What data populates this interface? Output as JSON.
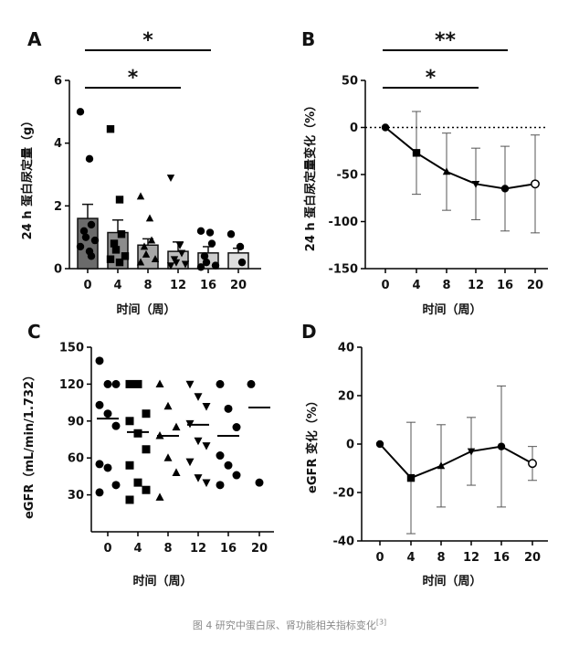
{
  "panels": [
    {
      "id": "A",
      "letter": "A",
      "chart_data": {
        "type": "bar",
        "title": "",
        "xlabel": "时间（周）",
        "ylabel": "24 h 蛋白尿定量（g）",
        "categories": [
          "0",
          "4",
          "8",
          "12",
          "16",
          "20"
        ],
        "values": [
          1.6,
          1.15,
          0.75,
          0.55,
          0.5,
          0.5
        ],
        "errors": [
          0.45,
          0.4,
          0.2,
          0.3,
          0.2,
          0.15
        ],
        "bar_colors": [
          "#6b6b6b",
          "#8c8c8c",
          "#a6a6a6",
          "#bcbcbc",
          "#cdcdcd",
          "#dedede"
        ],
        "markers": [
          "circle",
          "square",
          "triangle",
          "triangle-down",
          "circle",
          "circle"
        ],
        "points": [
          [
            5.0,
            3.5,
            1.4,
            1.2,
            1.0,
            0.9,
            0.7,
            0.55,
            0.4
          ],
          [
            4.45,
            2.2,
            1.1,
            0.8,
            0.6,
            0.4,
            0.3,
            0.2
          ],
          [
            2.3,
            1.6,
            0.9,
            0.7,
            0.45,
            0.3,
            0.2
          ],
          [
            2.9,
            0.75,
            0.5,
            0.3,
            0.2,
            0.15,
            0.1
          ],
          [
            1.2,
            1.15,
            0.8,
            0.4,
            0.2,
            0.1,
            0.05
          ],
          [
            1.1,
            0.7,
            0.2
          ]
        ],
        "yticks": [
          "0",
          "2",
          "4",
          "6"
        ],
        "ylim": [
          0,
          6
        ],
        "significance": [
          {
            "from": "0",
            "to": "16",
            "label": "*"
          },
          {
            "from": "0",
            "to": "12",
            "label": "*"
          }
        ]
      }
    },
    {
      "id": "B",
      "letter": "B",
      "chart_data": {
        "type": "line",
        "title": "",
        "xlabel": "时间（周）",
        "ylabel": "24 h 蛋白尿定量变化（%）",
        "categories": [
          "0",
          "4",
          "8",
          "12",
          "16",
          "20"
        ],
        "values": [
          0,
          -27,
          -47,
          -60,
          -65,
          -60
        ],
        "errors": [
          0,
          44,
          41,
          38,
          45,
          52
        ],
        "markers": [
          "circle",
          "square",
          "triangle",
          "triangle-down",
          "circle",
          "circle-open"
        ],
        "yticks": [
          "50",
          "0",
          "-50",
          "-100",
          "-150"
        ],
        "ylim": [
          -150,
          50
        ],
        "reference_line": 0,
        "significance": [
          {
            "from": "0",
            "to": "16",
            "label": "**"
          },
          {
            "from": "0",
            "to": "12",
            "label": "*"
          }
        ]
      }
    },
    {
      "id": "C",
      "letter": "C",
      "chart_data": {
        "type": "scatter",
        "title": "",
        "xlabel": "时间（周）",
        "ylabel": "eGFR（mL/min/1.732）",
        "categories": [
          "0",
          "4",
          "8",
          "12",
          "16",
          "20"
        ],
        "medians": [
          92,
          81,
          78,
          87,
          78,
          101
        ],
        "markers": [
          "circle",
          "square",
          "triangle",
          "triangle-down",
          "circle",
          "circle"
        ],
        "points": [
          [
            139,
            120,
            120,
            103,
            96,
            86,
            55,
            52,
            38,
            32
          ],
          [
            120,
            120,
            96,
            90,
            80,
            67,
            54,
            40,
            34,
            26
          ],
          [
            120,
            102,
            85,
            78,
            60,
            48,
            28
          ],
          [
            120,
            110,
            102,
            88,
            74,
            70,
            57,
            44,
            40
          ],
          [
            120,
            100,
            85,
            62,
            54,
            46,
            38
          ],
          [
            120,
            40
          ]
        ],
        "yticks": [
          "150",
          "120",
          "90",
          "60",
          "30"
        ],
        "ylim": [
          0,
          150
        ]
      }
    },
    {
      "id": "D",
      "letter": "D",
      "chart_data": {
        "type": "line",
        "title": "",
        "xlabel": "时间（周）",
        "ylabel": "eGFR 变化（%）",
        "categories": [
          "0",
          "4",
          "8",
          "12",
          "16",
          "20"
        ],
        "values": [
          0,
          -14,
          -9,
          -3,
          -1,
          -8
        ],
        "errors": [
          0,
          23,
          17,
          14,
          25,
          7
        ],
        "markers": [
          "circle",
          "square",
          "triangle",
          "triangle-down",
          "circle",
          "circle-open"
        ],
        "yticks": [
          "40",
          "20",
          "0",
          "-20",
          "-40"
        ],
        "ylim": [
          -40,
          40
        ]
      }
    }
  ],
  "caption": {
    "text": "图 4 研究中蛋白尿、肾功能相关指标变化",
    "ref": "[3]"
  }
}
